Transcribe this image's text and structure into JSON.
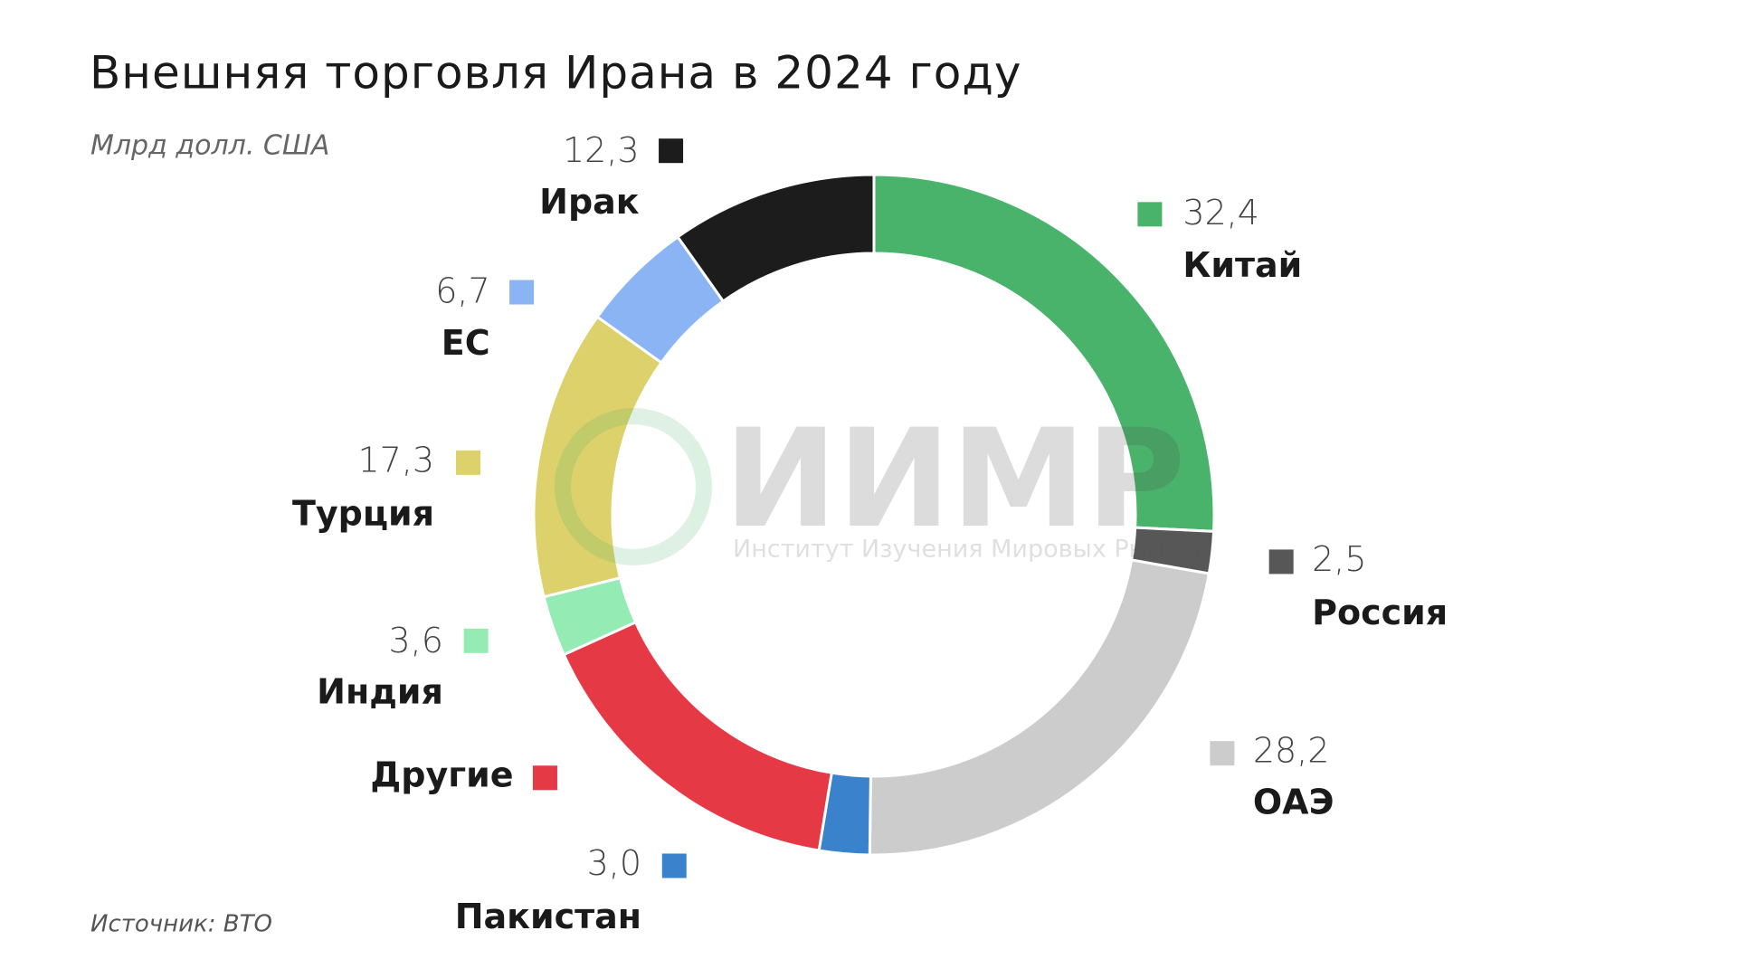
{
  "chart_data": {
    "type": "donut",
    "title": "Внешняя торговля Ирана в 2024 году",
    "subtitle": "Млрд долл. США",
    "source": "Источник: ВТО",
    "watermark": {
      "text": "ИИМР",
      "caption": "Институт Изучения Мировых Рынков"
    },
    "categories": [
      "Китай",
      "Россия",
      "ОАЭ",
      "Пакистан",
      "Другие",
      "Индия",
      "Турция",
      "ЕС",
      "Ирак"
    ],
    "values": [
      32.4,
      2.5,
      28.2,
      3.0,
      19.7,
      3.6,
      17.3,
      6.7,
      12.3
    ],
    "value_labels": [
      "32,4",
      "2,5",
      "28,2",
      "3,0",
      null,
      "3,6",
      "17,3",
      "6,7",
      "12,3"
    ],
    "colors": [
      "#4ab36b",
      "#575757",
      "#cccccc",
      "#3a82cc",
      "#e63946",
      "#94ecb4",
      "#dcd16a",
      "#8ab4f4",
      "#1c1c1c"
    ]
  }
}
